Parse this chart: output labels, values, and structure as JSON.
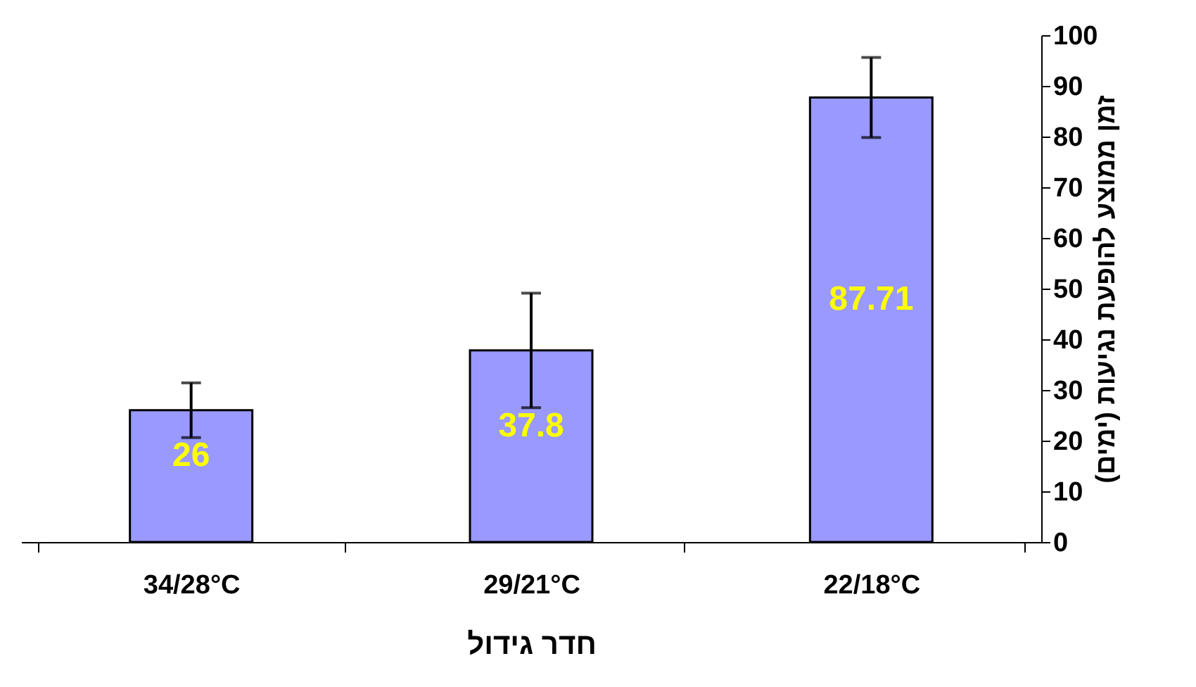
{
  "chart_data": {
    "type": "bar",
    "xlabel": "חדר גידול",
    "ylabel": "זמן ממוצע להופעת נגיעות (ימים)",
    "categories": [
      "34/28°C",
      "29/21°C",
      "22/18°C"
    ],
    "values": [
      26,
      37.8,
      87.71
    ],
    "errors": [
      5.4,
      11.3,
      7.9
    ],
    "color": "#9999ff",
    "ylim": [
      0,
      100
    ],
    "yticks": [
      0,
      10,
      20,
      30,
      40,
      50,
      60,
      70,
      80,
      90,
      100
    ],
    "data_labels": true,
    "grid": false
  }
}
